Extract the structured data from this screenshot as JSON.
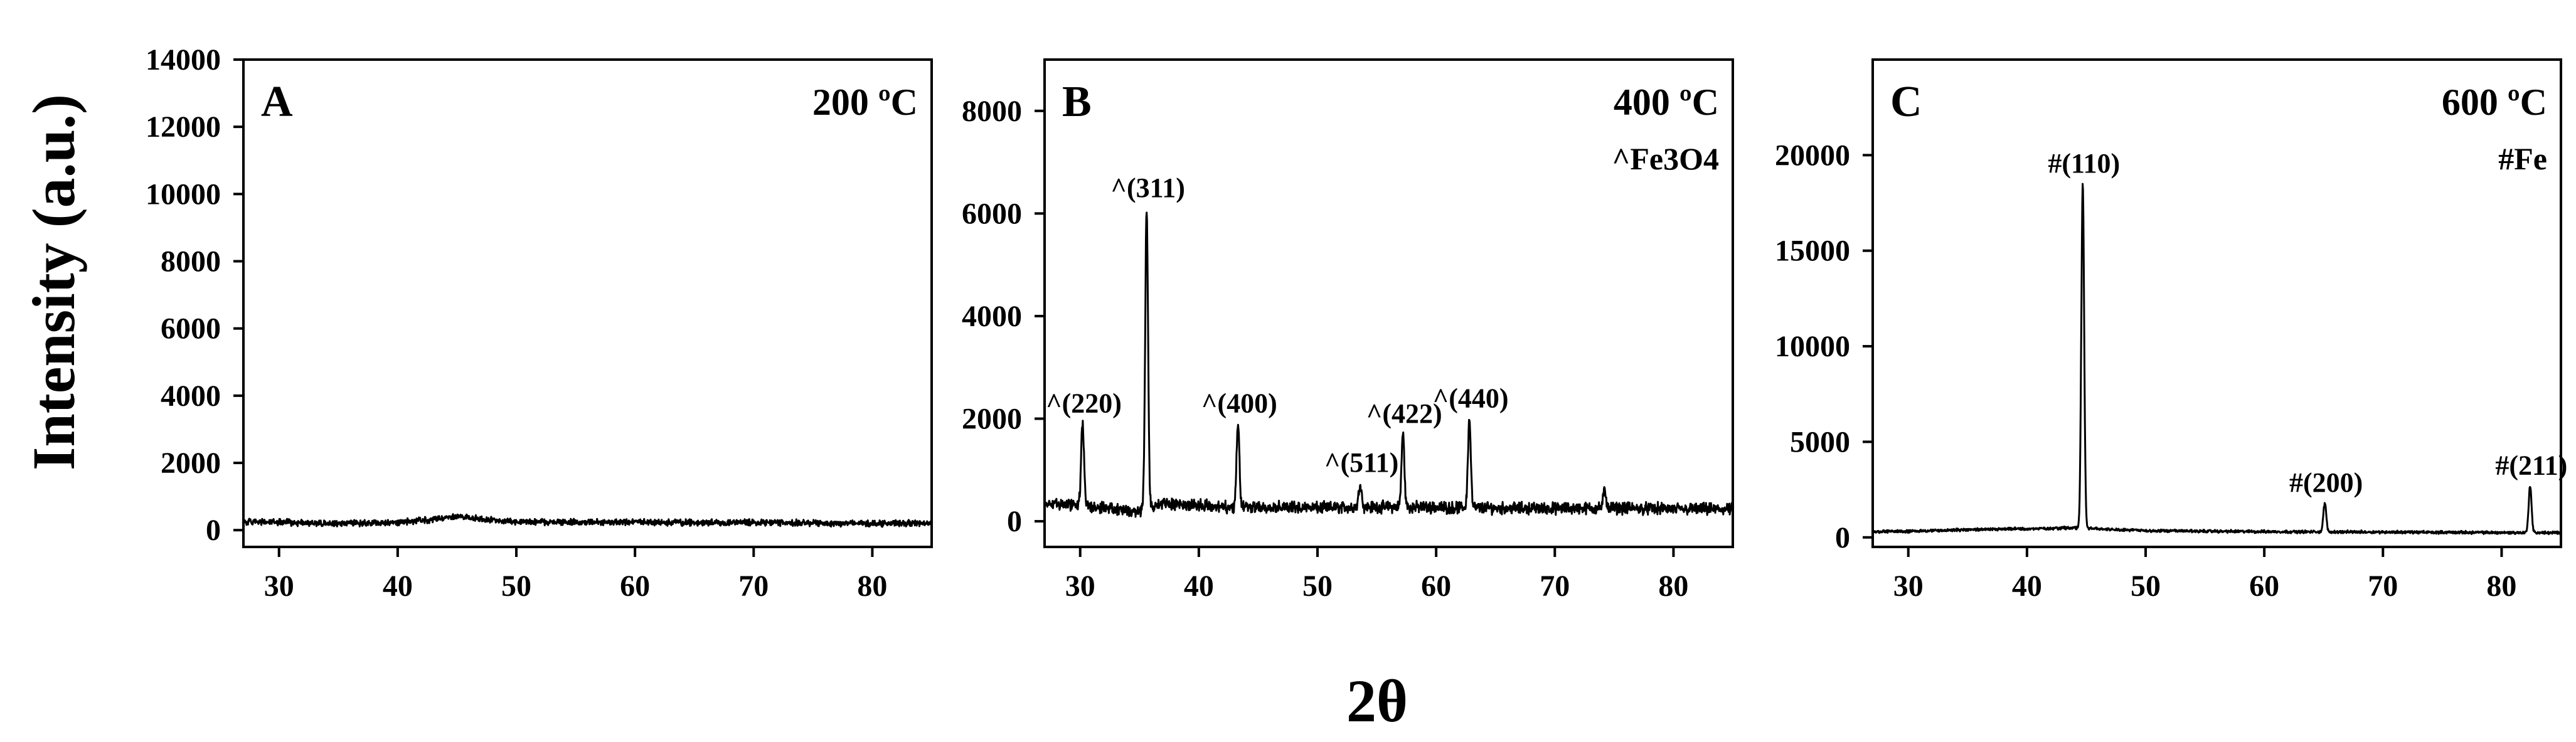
{
  "figure": {
    "ylabel": "Intensity (a.u.)",
    "xlabel": "2θ"
  },
  "chart_data": [
    {
      "type": "line",
      "panel": "A",
      "annotation": "200 ºC",
      "legend": "",
      "xlim": [
        27,
        85
      ],
      "ylim": [
        -500,
        14000
      ],
      "xticks": [
        30,
        40,
        50,
        60,
        70,
        80
      ],
      "yticks": [
        0,
        2000,
        4000,
        6000,
        8000,
        10000,
        12000,
        14000
      ],
      "baseline": {
        "x": [
          27,
          30,
          35,
          40,
          43,
          45,
          47,
          50,
          55,
          60,
          65,
          70,
          75,
          80,
          85
        ],
        "y": [
          250,
          230,
          200,
          230,
          320,
          420,
          330,
          250,
          230,
          240,
          220,
          230,
          210,
          200,
          210
        ]
      },
      "noise": 110,
      "peaks": []
    },
    {
      "type": "line",
      "panel": "B",
      "annotation": "400 ºC",
      "legend": "^Fe3O4",
      "xlim": [
        27,
        85
      ],
      "ylim": [
        -500,
        9000
      ],
      "xticks": [
        30,
        40,
        50,
        60,
        70,
        80
      ],
      "yticks": [
        0,
        2000,
        4000,
        6000,
        8000
      ],
      "baseline": {
        "x": [
          27,
          30,
          33,
          35,
          37,
          40,
          45,
          50,
          55,
          60,
          65,
          70,
          75,
          80,
          85
        ],
        "y": [
          350,
          320,
          250,
          200,
          350,
          300,
          280,
          260,
          280,
          270,
          260,
          250,
          260,
          240,
          230
        ]
      },
      "noise": 140,
      "peaks": [
        {
          "x": 30.2,
          "y": 1900,
          "label": "^(220)"
        },
        {
          "x": 35.6,
          "y": 6100,
          "label": "^(311)"
        },
        {
          "x": 43.3,
          "y": 1900,
          "label": "^(400)"
        },
        {
          "x": 53.6,
          "y": 750,
          "label": "^(511)"
        },
        {
          "x": 57.2,
          "y": 1700,
          "label": "^(422)"
        },
        {
          "x": 62.8,
          "y": 2000,
          "label": "^(440)"
        },
        {
          "x": 74.2,
          "y": 600,
          "label": ""
        }
      ]
    },
    {
      "type": "line",
      "panel": "C",
      "annotation": "600 ºC",
      "legend": "#Fe",
      "xlim": [
        27,
        85
      ],
      "ylim": [
        -500,
        25000
      ],
      "xticks": [
        30,
        40,
        50,
        60,
        70,
        80
      ],
      "yticks": [
        0,
        5000,
        10000,
        15000,
        20000
      ],
      "baseline": {
        "x": [
          27,
          30,
          35,
          40,
          44,
          46,
          50,
          60,
          70,
          80,
          85
        ],
        "y": [
          300,
          320,
          400,
          450,
          500,
          450,
          350,
          300,
          280,
          250,
          240
        ]
      },
      "noise": 90,
      "peaks": [
        {
          "x": 44.7,
          "y": 18500,
          "label": "#(110)"
        },
        {
          "x": 65.1,
          "y": 1800,
          "label": "#(200)"
        },
        {
          "x": 82.4,
          "y": 2700,
          "label": "#(211)"
        }
      ]
    }
  ]
}
